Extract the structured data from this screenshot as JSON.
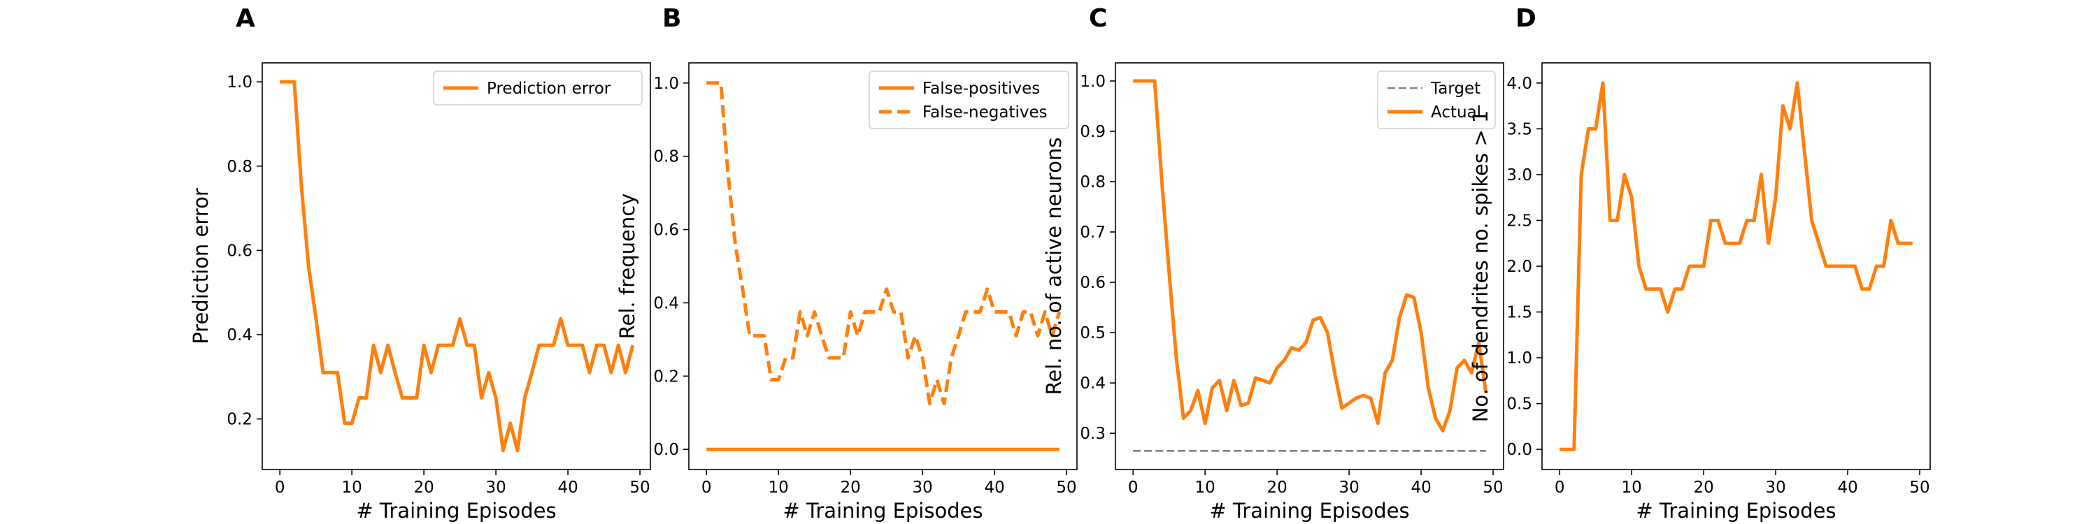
{
  "colors": {
    "series": "#ff7f0e",
    "target": "#808080",
    "axes": "#000000"
  },
  "chart_data": [
    {
      "panel": "A",
      "type": "line",
      "xlabel": "# Training Episodes",
      "ylabel": "Prediction error",
      "xlim": [
        -2.45,
        51.45
      ],
      "ylim": [
        0.08,
        1.045
      ],
      "xticks": [
        0,
        10,
        20,
        30,
        40,
        50
      ],
      "yticks": [
        0.2,
        0.4,
        0.6,
        0.8,
        1.0
      ],
      "ytick_labels": [
        "0.2",
        "0.4",
        "0.6",
        "0.8",
        "1.0"
      ],
      "legend": "top-right",
      "series": [
        {
          "name": "Prediction error",
          "style": "solid",
          "x": [
            0,
            1,
            2,
            3,
            4,
            5,
            6,
            7,
            8,
            9,
            10,
            11,
            12,
            13,
            14,
            15,
            16,
            17,
            18,
            19,
            20,
            21,
            22,
            23,
            24,
            25,
            26,
            27,
            28,
            29,
            30,
            31,
            32,
            33,
            34,
            35,
            36,
            37,
            38,
            39,
            40,
            41,
            42,
            43,
            44,
            45,
            46,
            47,
            48,
            49
          ],
          "y": [
            1.0,
            1.0,
            1.0,
            0.75,
            0.56,
            0.44,
            0.31,
            0.31,
            0.31,
            0.19,
            0.19,
            0.25,
            0.25,
            0.375,
            0.31,
            0.375,
            0.31,
            0.25,
            0.25,
            0.25,
            0.375,
            0.31,
            0.375,
            0.375,
            0.375,
            0.4375,
            0.375,
            0.375,
            0.25,
            0.31,
            0.25,
            0.125,
            0.19,
            0.125,
            0.25,
            0.31,
            0.375,
            0.375,
            0.375,
            0.4375,
            0.375,
            0.375,
            0.375,
            0.31,
            0.375,
            0.375,
            0.31,
            0.375,
            0.31,
            0.375
          ]
        }
      ]
    },
    {
      "panel": "B",
      "type": "line",
      "xlabel": "# Training Episodes",
      "ylabel": "Rel. frequency",
      "xlim": [
        -2.45,
        51.45
      ],
      "ylim": [
        -0.055,
        1.055
      ],
      "xticks": [
        0,
        10,
        20,
        30,
        40,
        50
      ],
      "yticks": [
        0.0,
        0.2,
        0.4,
        0.6,
        0.8,
        1.0
      ],
      "ytick_labels": [
        "0.0",
        "0.2",
        "0.4",
        "0.6",
        "0.8",
        "1.0"
      ],
      "legend": "top-right",
      "series": [
        {
          "name": "False-positives",
          "style": "solid",
          "x": [
            0,
            49
          ],
          "y": [
            0.0,
            0.0
          ]
        },
        {
          "name": "False-negatives",
          "style": "dashed",
          "x": [
            0,
            1,
            2,
            3,
            4,
            5,
            6,
            7,
            8,
            9,
            10,
            11,
            12,
            13,
            14,
            15,
            16,
            17,
            18,
            19,
            20,
            21,
            22,
            23,
            24,
            25,
            26,
            27,
            28,
            29,
            30,
            31,
            32,
            33,
            34,
            35,
            36,
            37,
            38,
            39,
            40,
            41,
            42,
            43,
            44,
            45,
            46,
            47,
            48,
            49
          ],
          "y": [
            1.0,
            1.0,
            1.0,
            0.75,
            0.56,
            0.44,
            0.31,
            0.31,
            0.31,
            0.19,
            0.19,
            0.25,
            0.25,
            0.375,
            0.31,
            0.375,
            0.31,
            0.25,
            0.25,
            0.25,
            0.375,
            0.31,
            0.375,
            0.375,
            0.375,
            0.4375,
            0.375,
            0.375,
            0.25,
            0.31,
            0.25,
            0.125,
            0.19,
            0.125,
            0.25,
            0.31,
            0.375,
            0.375,
            0.375,
            0.4375,
            0.375,
            0.375,
            0.375,
            0.31,
            0.375,
            0.375,
            0.31,
            0.375,
            0.31,
            0.375
          ]
        }
      ]
    },
    {
      "panel": "C",
      "type": "line",
      "xlabel": "# Training Episodes",
      "ylabel": "Rel. no. of active neurons",
      "xlim": [
        -2.45,
        51.45
      ],
      "ylim": [
        0.228,
        1.036
      ],
      "xticks": [
        0,
        10,
        20,
        30,
        40,
        50
      ],
      "yticks": [
        0.3,
        0.4,
        0.5,
        0.6,
        0.7,
        0.8,
        0.9,
        1.0
      ],
      "ytick_labels": [
        "0.3",
        "0.4",
        "0.5",
        "0.6",
        "0.7",
        "0.8",
        "0.9",
        "1.0"
      ],
      "legend": "top-right",
      "series": [
        {
          "name": "Target",
          "style": "dashed-gray",
          "x": [
            0,
            49
          ],
          "y": [
            0.265,
            0.265
          ]
        },
        {
          "name": "Actual",
          "style": "solid",
          "x": [
            0,
            1,
            2,
            3,
            4,
            5,
            6,
            7,
            8,
            9,
            10,
            11,
            12,
            13,
            14,
            15,
            16,
            17,
            18,
            19,
            20,
            21,
            22,
            23,
            24,
            25,
            26,
            27,
            28,
            29,
            30,
            31,
            32,
            33,
            34,
            35,
            36,
            37,
            38,
            39,
            40,
            41,
            42,
            43,
            44,
            45,
            46,
            47,
            48,
            49
          ],
          "y": [
            1.0,
            1.0,
            1.0,
            1.0,
            0.8,
            0.62,
            0.45,
            0.33,
            0.345,
            0.385,
            0.32,
            0.39,
            0.405,
            0.345,
            0.405,
            0.355,
            0.36,
            0.41,
            0.405,
            0.4,
            0.43,
            0.445,
            0.47,
            0.465,
            0.48,
            0.525,
            0.53,
            0.5,
            0.42,
            0.35,
            0.36,
            0.37,
            0.375,
            0.37,
            0.32,
            0.42,
            0.445,
            0.53,
            0.575,
            0.57,
            0.5,
            0.39,
            0.33,
            0.305,
            0.345,
            0.43,
            0.445,
            0.42,
            0.48,
            0.38
          ]
        }
      ]
    },
    {
      "panel": "D",
      "type": "line",
      "xlabel": "# Training Episodes",
      "ylabel": "No. of dendrites no. spikes > 1",
      "xlim": [
        -2.45,
        51.45
      ],
      "ylim": [
        -0.22,
        4.22
      ],
      "xticks": [
        0,
        10,
        20,
        30,
        40,
        50
      ],
      "yticks": [
        0.0,
        0.5,
        1.0,
        1.5,
        2.0,
        2.5,
        3.0,
        3.5,
        4.0
      ],
      "ytick_labels": [
        "0.0",
        "0.5",
        "1.0",
        "1.5",
        "2.0",
        "2.5",
        "3.0",
        "3.5",
        "4.0"
      ],
      "legend": "none",
      "series": [
        {
          "style": "solid",
          "x": [
            0,
            1,
            2,
            3,
            4,
            5,
            6,
            7,
            8,
            9,
            10,
            11,
            12,
            13,
            14,
            15,
            16,
            17,
            18,
            19,
            20,
            21,
            22,
            23,
            24,
            25,
            26,
            27,
            28,
            29,
            30,
            31,
            32,
            33,
            34,
            35,
            36,
            37,
            38,
            39,
            40,
            41,
            42,
            43,
            44,
            45,
            46,
            47,
            48,
            49
          ],
          "y": [
            0.0,
            0.0,
            0.0,
            3.0,
            3.5,
            3.5,
            4.0,
            2.5,
            2.5,
            3.0,
            2.75,
            2.0,
            1.75,
            1.75,
            1.75,
            1.5,
            1.75,
            1.75,
            2.0,
            2.0,
            2.0,
            2.5,
            2.5,
            2.25,
            2.25,
            2.25,
            2.5,
            2.5,
            3.0,
            2.25,
            2.75,
            3.75,
            3.5,
            4.0,
            3.25,
            2.5,
            2.25,
            2.0,
            2.0,
            2.0,
            2.0,
            2.0,
            1.75,
            1.75,
            2.0,
            2.0,
            2.5,
            2.25,
            2.25,
            2.25
          ]
        }
      ]
    }
  ]
}
